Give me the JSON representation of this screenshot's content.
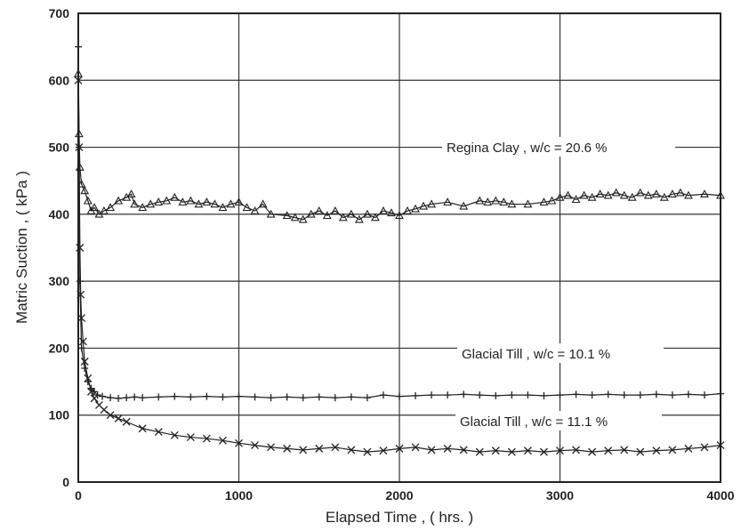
{
  "chart_data": {
    "type": "scatter",
    "title": "",
    "xlabel": "Elapsed Time , ( hrs. )",
    "ylabel": "Matric Suction , ( kPa )",
    "xlim": [
      0,
      4000
    ],
    "ylim": [
      0,
      700
    ],
    "x_ticks": [
      "0",
      "1000",
      "2000",
      "3000",
      "4000"
    ],
    "y_ticks": [
      "0",
      "100",
      "200",
      "300",
      "400",
      "500",
      "600",
      "700"
    ],
    "grid": true,
    "annotations": [
      "Regina Clay , w/c = 20.6 %",
      "Glacial Till , w/c = 10.1 %",
      "Glacial Till , w/c = 11.1 %"
    ],
    "series": [
      {
        "marker": "triangle",
        "color": "#222222",
        "x": [
          0,
          5,
          10,
          20,
          40,
          60,
          80,
          100,
          130,
          160,
          200,
          250,
          300,
          330,
          350,
          400,
          450,
          500,
          550,
          600,
          650,
          700,
          750,
          800,
          850,
          900,
          950,
          1000,
          1050,
          1100,
          1150,
          1200,
          1300,
          1350,
          1400,
          1450,
          1500,
          1550,
          1600,
          1650,
          1700,
          1750,
          1800,
          1850,
          1900,
          1950,
          2000,
          2050,
          2100,
          2150,
          2200,
          2300,
          2400,
          2500,
          2550,
          2600,
          2650,
          2700,
          2800,
          2900,
          2950,
          3000,
          3050,
          3100,
          3150,
          3200,
          3250,
          3300,
          3350,
          3400,
          3450,
          3500,
          3550,
          3600,
          3650,
          3700,
          3750,
          3800,
          3900,
          4000
        ],
        "y": [
          610,
          520,
          470,
          445,
          435,
          420,
          405,
          410,
          400,
          405,
          410,
          420,
          425,
          430,
          415,
          410,
          415,
          418,
          420,
          425,
          418,
          420,
          415,
          418,
          415,
          410,
          415,
          418,
          410,
          405,
          415,
          400,
          398,
          395,
          392,
          400,
          405,
          398,
          405,
          395,
          400,
          392,
          400,
          395,
          405,
          402,
          398,
          405,
          408,
          412,
          415,
          418,
          412,
          420,
          418,
          420,
          418,
          415,
          415,
          418,
          420,
          425,
          428,
          422,
          428,
          425,
          430,
          428,
          432,
          428,
          425,
          432,
          428,
          430,
          425,
          430,
          432,
          428,
          430,
          428
        ]
      },
      {
        "marker": "plus",
        "color": "#222222",
        "x": [
          0,
          5,
          10,
          20,
          40,
          60,
          80,
          100,
          120,
          150,
          200,
          250,
          300,
          350,
          400,
          500,
          600,
          700,
          800,
          900,
          1000,
          1100,
          1200,
          1300,
          1400,
          1500,
          1600,
          1700,
          1800,
          1900,
          2000,
          2100,
          2200,
          2300,
          2400,
          2500,
          2600,
          2700,
          2800,
          2900,
          3000,
          3100,
          3200,
          3300,
          3400,
          3500,
          3600,
          3700,
          3800,
          3900,
          4000
        ],
        "y": [
          650,
          500,
          300,
          200,
          170,
          150,
          140,
          135,
          130,
          128,
          126,
          125,
          126,
          127,
          126,
          127,
          128,
          127,
          128,
          127,
          128,
          127,
          126,
          127,
          126,
          127,
          126,
          127,
          126,
          130,
          128,
          129,
          130,
          130,
          131,
          130,
          129,
          130,
          130,
          129,
          130,
          131,
          130,
          131,
          130,
          130,
          131,
          130,
          131,
          130,
          132
        ]
      },
      {
        "marker": "cross",
        "color": "#222222",
        "x": [
          0,
          5,
          10,
          15,
          20,
          30,
          40,
          60,
          80,
          100,
          130,
          160,
          200,
          250,
          300,
          400,
          500,
          600,
          700,
          800,
          900,
          1000,
          1100,
          1200,
          1300,
          1400,
          1500,
          1600,
          1700,
          1800,
          1900,
          2000,
          2100,
          2200,
          2300,
          2400,
          2500,
          2600,
          2700,
          2800,
          2900,
          3000,
          3100,
          3200,
          3300,
          3400,
          3500,
          3600,
          3700,
          3800,
          3900,
          4000
        ],
        "y": [
          600,
          500,
          350,
          280,
          245,
          210,
          180,
          155,
          135,
          125,
          115,
          108,
          100,
          95,
          90,
          80,
          75,
          70,
          67,
          65,
          62,
          58,
          55,
          52,
          50,
          48,
          50,
          52,
          48,
          45,
          47,
          50,
          52,
          48,
          50,
          48,
          45,
          47,
          45,
          47,
          45,
          47,
          48,
          45,
          47,
          48,
          45,
          47,
          48,
          50,
          52,
          55
        ]
      }
    ]
  }
}
